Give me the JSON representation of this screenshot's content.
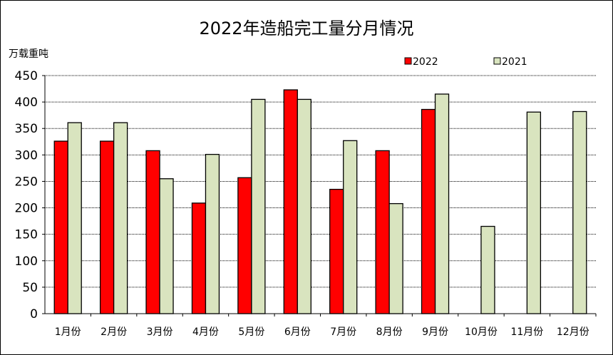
{
  "chart_data": {
    "type": "bar",
    "title": "2022年造船完工量分月情况",
    "ylabel": "万载重吨",
    "xlabel": "",
    "categories": [
      "1月份",
      "2月份",
      "3月份",
      "4月份",
      "5月份",
      "6月份",
      "7月份",
      "8月份",
      "9月份",
      "10月份",
      "11月份",
      "12月份"
    ],
    "series": [
      {
        "name": "2022",
        "color": "#ff0000",
        "values": [
          326,
          326,
          308,
          209,
          257,
          423,
          235,
          308,
          386,
          null,
          null,
          null
        ]
      },
      {
        "name": "2021",
        "color": "#d9e4bf",
        "values": [
          361,
          361,
          255,
          301,
          405,
          405,
          327,
          208,
          415,
          165,
          381,
          382
        ]
      }
    ],
    "ylim": [
      0,
      450
    ],
    "yticks": [
      0,
      50,
      100,
      150,
      200,
      250,
      300,
      350,
      400,
      450
    ],
    "grid": true,
    "legend": "top-right"
  }
}
